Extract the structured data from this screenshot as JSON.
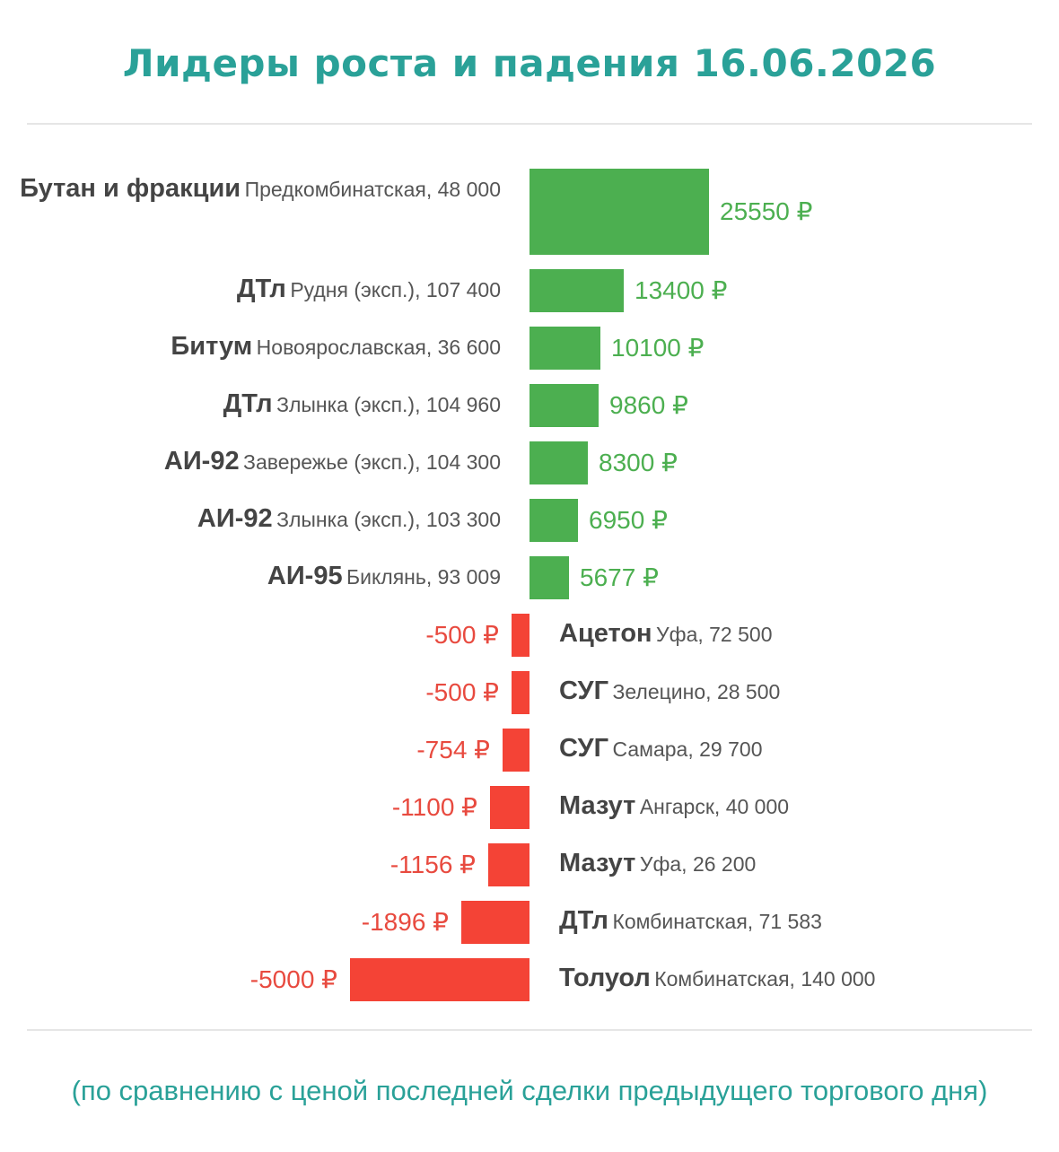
{
  "title": "Лидеры роста и падения 16.06.2026",
  "footnote": "(по сравнению с ценой последней сделки предыдущего торгового дня)",
  "colors": {
    "title": "#2aa198",
    "positive": "#4caf50",
    "negative": "#f44336"
  },
  "chart_data": {
    "type": "bar",
    "orientation": "horizontal",
    "currency_suffix": " ₽",
    "rows": [
      {
        "product": "Бутан и фракции",
        "location": "Предкомбинатская",
        "price": "48 000",
        "change": 25550
      },
      {
        "product": "ДТл",
        "location": "Рудня (эксп.)",
        "price": "107 400",
        "change": 13400
      },
      {
        "product": "Битум",
        "location": "Новоярославская",
        "price": "36 600",
        "change": 10100
      },
      {
        "product": "ДТл",
        "location": "Злынка (эксп.)",
        "price": "104 960",
        "change": 9860
      },
      {
        "product": "АИ-92",
        "location": "Завережье (эксп.)",
        "price": "104 300",
        "change": 8300
      },
      {
        "product": "АИ-92",
        "location": "Злынка (эксп.)",
        "price": "103 300",
        "change": 6950
      },
      {
        "product": "АИ-95",
        "location": "Биклянь",
        "price": "93 009",
        "change": 5677
      },
      {
        "product": "Ацетон",
        "location": "Уфа",
        "price": "72 500",
        "change": -500
      },
      {
        "product": "СУГ",
        "location": "Зелецино",
        "price": "28 500",
        "change": -500
      },
      {
        "product": "СУГ",
        "location": "Самара",
        "price": "29 700",
        "change": -754
      },
      {
        "product": "Мазут",
        "location": "Ангарск",
        "price": "40 000",
        "change": -1100
      },
      {
        "product": "Мазут",
        "location": "Уфа",
        "price": "26 200",
        "change": -1156
      },
      {
        "product": "ДТл",
        "location": "Комбинатская",
        "price": "71 583",
        "change": -1896
      },
      {
        "product": "Толуол",
        "location": "Комбинатская",
        "price": "140 000",
        "change": -5000
      }
    ]
  }
}
